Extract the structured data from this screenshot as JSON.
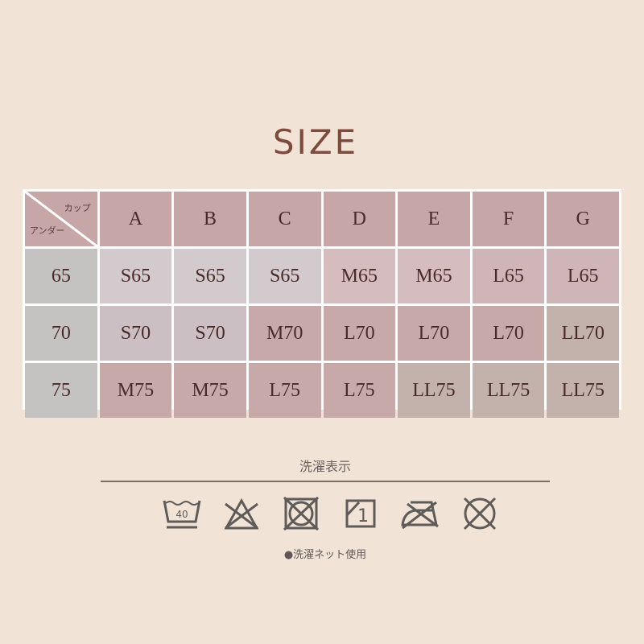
{
  "title": "SIZE",
  "table": {
    "corner": {
      "cup_label": "カップ",
      "under_label": "アンダー"
    },
    "cups": [
      "A",
      "B",
      "C",
      "D",
      "E",
      "F",
      "G"
    ],
    "rows": [
      {
        "under": "65",
        "sizes": [
          "S65",
          "S65",
          "S65",
          "M65",
          "M65",
          "L65",
          "L65"
        ]
      },
      {
        "under": "70",
        "sizes": [
          "S70",
          "S70",
          "M70",
          "L70",
          "L70",
          "L70",
          "LL70"
        ]
      },
      {
        "under": "75",
        "sizes": [
          "M75",
          "M75",
          "L75",
          "L75",
          "LL75",
          "LL75",
          "LL75"
        ]
      }
    ],
    "colors": {
      "header": "#c6a6a7",
      "under": "#c5c3c1",
      "S65": "#d3cacd",
      "S70": "#cbbfc3",
      "M65": "#d5bdbf",
      "L65": "#cfb5b8",
      "M": "#c7a9aa",
      "L": "#c7a9aa",
      "LL": "#c3b1ac",
      "text": "#4a2a28"
    }
  },
  "care": {
    "title": "洗濯表示",
    "icons": [
      "wash-40-gentle-icon",
      "no-bleach-icon",
      "no-tumble-dry-icon",
      "line-dry-shade-icon",
      "no-iron-icon",
      "no-dryclean-icon"
    ],
    "wash_temp": "40",
    "dry_mark": "1",
    "note": "●洗濯ネット使用",
    "icon_color": "#5e5b59"
  }
}
